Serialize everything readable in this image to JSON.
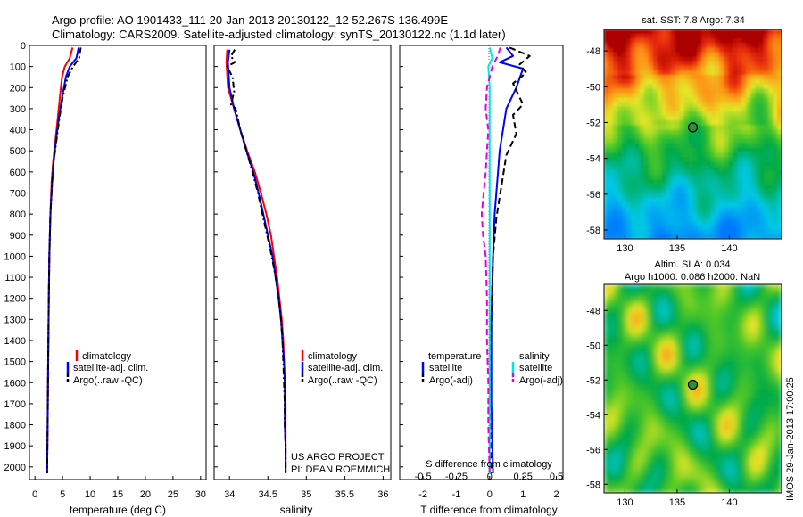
{
  "header": {
    "line1": "Argo profile: AO 1901433_111 20-Jan-2013 20130122_12 52.267S 136.499E",
    "line2": "Climatology: CARS2009. Satellite-adjusted climatology: synTS_20130122.nc (1.1d later)"
  },
  "side_stamp": "IMOS 29-Jan-2013 17:00:25",
  "colors": {
    "climatology": "#ff0000",
    "satellite": "#0000ff",
    "argo": "#000000",
    "s_satellite": "#00e5e5",
    "s_argo": "#e600e6"
  },
  "chart_data": [
    {
      "type": "line",
      "xlabel": "temperature (deg C)",
      "ylabel": "",
      "xlim": [
        -1,
        31
      ],
      "ylim": [
        2060,
        0
      ],
      "xticks": [
        "0",
        "5",
        "10",
        "15",
        "20",
        "25",
        "30"
      ],
      "yticks": [
        "0",
        "100",
        "200",
        "300",
        "400",
        "500",
        "600",
        "700",
        "800",
        "900",
        "1000",
        "1100",
        "1200",
        "1300",
        "1400",
        "1500",
        "1600",
        "1700",
        "1800",
        "1900",
        "2000"
      ],
      "legend": [
        "climatology",
        "satellite-adj. clim.",
        "Argo(..raw -QC)"
      ],
      "legend_position": "bottom-right",
      "series": [
        {
          "name": "climatology",
          "color": "#ff0000",
          "style": "solid",
          "points": [
            [
              6.8,
              10
            ],
            [
              6.3,
              60
            ],
            [
              5.4,
              100
            ],
            [
              4.9,
              150
            ],
            [
              4.5,
              250
            ],
            [
              4.1,
              350
            ],
            [
              3.7,
              450
            ],
            [
              3.3,
              550
            ],
            [
              3.0,
              650
            ],
            [
              2.8,
              800
            ],
            [
              2.6,
              1000
            ],
            [
              2.5,
              1200
            ],
            [
              2.4,
              1500
            ],
            [
              2.3,
              1800
            ],
            [
              2.2,
              2030
            ]
          ]
        },
        {
          "name": "satellite-adj. clim.",
          "color": "#0000ff",
          "style": "solid",
          "points": [
            [
              7.9,
              10
            ],
            [
              7.5,
              60
            ],
            [
              6.3,
              100
            ],
            [
              5.6,
              150
            ],
            [
              4.9,
              250
            ],
            [
              4.3,
              350
            ],
            [
              3.8,
              450
            ],
            [
              3.4,
              550
            ],
            [
              3.1,
              650
            ],
            [
              2.8,
              800
            ],
            [
              2.6,
              1000
            ],
            [
              2.5,
              1200
            ],
            [
              2.4,
              1500
            ],
            [
              2.3,
              1800
            ],
            [
              2.2,
              2030
            ]
          ]
        },
        {
          "name": "Argo(..raw -QC)",
          "color": "#000000",
          "style": "dashdot",
          "points": [
            [
              8.3,
              10
            ],
            [
              8.0,
              60
            ],
            [
              6.9,
              100
            ],
            [
              5.9,
              150
            ],
            [
              5.0,
              250
            ],
            [
              4.4,
              350
            ],
            [
              3.9,
              450
            ],
            [
              3.4,
              550
            ],
            [
              3.1,
              650
            ],
            [
              2.8,
              800
            ],
            [
              2.6,
              1000
            ],
            [
              2.5,
              1200
            ],
            [
              2.4,
              1500
            ],
            [
              2.3,
              1800
            ],
            [
              2.2,
              2030
            ]
          ]
        }
      ]
    },
    {
      "type": "line",
      "xlabel": "salinity",
      "xlim": [
        33.8,
        36.1
      ],
      "ylim": [
        2060,
        0
      ],
      "xticks": [
        "34",
        "34.5",
        "35",
        "35.5",
        "36"
      ],
      "legend": [
        "climatology",
        "satellite-adj. clim.",
        "Argo(..raw -QC)"
      ],
      "legend_position": "bottom-right",
      "annotations": [
        "US ARGO PROJECT",
        "PI: DEAN ROEMMICH"
      ],
      "series": [
        {
          "name": "climatology",
          "color": "#ff0000",
          "style": "solid",
          "points": [
            [
              33.97,
              20
            ],
            [
              33.96,
              80
            ],
            [
              33.98,
              200
            ],
            [
              34.06,
              300
            ],
            [
              34.14,
              400
            ],
            [
              34.23,
              500
            ],
            [
              34.33,
              600
            ],
            [
              34.41,
              700
            ],
            [
              34.48,
              800
            ],
            [
              34.54,
              900
            ],
            [
              34.58,
              1000
            ],
            [
              34.62,
              1100
            ],
            [
              34.65,
              1200
            ],
            [
              34.68,
              1300
            ],
            [
              34.7,
              1400
            ],
            [
              34.71,
              1500
            ],
            [
              34.72,
              1600
            ],
            [
              34.73,
              1700
            ],
            [
              34.73,
              1800
            ],
            [
              34.73,
              1900
            ],
            [
              34.73,
              2030
            ]
          ]
        },
        {
          "name": "satellite-adj. clim.",
          "color": "#0000ff",
          "style": "solid",
          "points": [
            [
              34.0,
              20
            ],
            [
              33.98,
              80
            ],
            [
              34.0,
              200
            ],
            [
              34.06,
              300
            ],
            [
              34.14,
              400
            ],
            [
              34.22,
              500
            ],
            [
              34.31,
              600
            ],
            [
              34.38,
              700
            ],
            [
              34.44,
              800
            ],
            [
              34.5,
              900
            ],
            [
              34.56,
              1000
            ],
            [
              34.6,
              1100
            ],
            [
              34.64,
              1200
            ],
            [
              34.67,
              1300
            ],
            [
              34.69,
              1400
            ],
            [
              34.71,
              1500
            ],
            [
              34.72,
              1600
            ],
            [
              34.72,
              1700
            ],
            [
              34.72,
              1800
            ],
            [
              34.73,
              1900
            ],
            [
              34.73,
              2030
            ]
          ]
        },
        {
          "name": "Argo(..raw -QC)",
          "color": "#000000",
          "style": "dashdot",
          "points": [
            [
              34.07,
              20
            ],
            [
              34.02,
              50
            ],
            [
              34.07,
              80
            ],
            [
              33.97,
              100
            ],
            [
              34.04,
              150
            ],
            [
              34.06,
              220
            ],
            [
              34.02,
              280
            ],
            [
              34.08,
              300
            ],
            [
              34.14,
              400
            ],
            [
              34.22,
              500
            ],
            [
              34.3,
              600
            ],
            [
              34.37,
              700
            ],
            [
              34.43,
              800
            ],
            [
              34.49,
              900
            ],
            [
              34.55,
              1000
            ],
            [
              34.6,
              1100
            ],
            [
              34.64,
              1200
            ],
            [
              34.67,
              1300
            ],
            [
              34.69,
              1400
            ],
            [
              34.7,
              1500
            ],
            [
              34.71,
              1600
            ],
            [
              34.72,
              1700
            ],
            [
              34.72,
              1800
            ],
            [
              34.73,
              1900
            ],
            [
              34.73,
              2030
            ]
          ]
        }
      ]
    },
    {
      "type": "line",
      "xlabel": "T difference from climatology",
      "xlabel2": "S difference from climatology",
      "xlim": [
        -2.7,
        2.2
      ],
      "xticks": [
        "-2",
        "-1",
        "0",
        "1",
        "2"
      ],
      "xticks_top": [
        "-0.5",
        "-0.25",
        "0",
        "0.25",
        "0.5"
      ],
      "ylim": [
        2060,
        0
      ],
      "legend_titles": [
        "temperature",
        "salinity"
      ],
      "legend": [
        "satellite",
        "Argo(-adj)",
        "satellite",
        "Argo(-adj)"
      ],
      "legend_position": "bottom",
      "series": [
        {
          "name": "satellite",
          "quantity": "temperature",
          "color": "#0000ff",
          "style": "solid",
          "points": [
            [
              0.5,
              10
            ],
            [
              0.7,
              50
            ],
            [
              0.3,
              80
            ],
            [
              1.0,
              110
            ],
            [
              0.8,
              200
            ],
            [
              0.5,
              300
            ],
            [
              0.4,
              400
            ],
            [
              0.3,
              500
            ],
            [
              0.25,
              600
            ],
            [
              0.2,
              700
            ],
            [
              0.15,
              800
            ],
            [
              0.1,
              1000
            ],
            [
              0.05,
              1300
            ],
            [
              0.05,
              1700
            ],
            [
              0.1,
              2030
            ]
          ]
        },
        {
          "name": "Argo(-adj)",
          "quantity": "temperature",
          "color": "#000000",
          "style": "dashed",
          "points": [
            [
              0.6,
              10
            ],
            [
              1.2,
              50
            ],
            [
              0.9,
              90
            ],
            [
              1.1,
              130
            ],
            [
              0.7,
              180
            ],
            [
              1.0,
              280
            ],
            [
              0.7,
              330
            ],
            [
              0.8,
              420
            ],
            [
              0.5,
              520
            ],
            [
              0.4,
              620
            ],
            [
              0.3,
              720
            ],
            [
              0.2,
              820
            ],
            [
              0.1,
              1000
            ],
            [
              0.05,
              1300
            ],
            [
              0.0,
              1700
            ],
            [
              0.05,
              2030
            ]
          ]
        },
        {
          "name": "satellite",
          "quantity": "salinity",
          "color": "#00e5e5",
          "style": "solid",
          "points": [
            [
              0.0,
              10
            ],
            [
              0.02,
              60
            ],
            [
              -0.01,
              100
            ],
            [
              0.0,
              200
            ],
            [
              0.0,
              400
            ],
            [
              0.0,
              700
            ],
            [
              0.0,
              1000
            ],
            [
              0.0,
              1500
            ],
            [
              0.0,
              2030
            ]
          ]
        },
        {
          "name": "Argo(-adj)",
          "quantity": "salinity",
          "color": "#e600e6",
          "style": "dashed",
          "points": [
            [
              0.08,
              10
            ],
            [
              0.06,
              50
            ],
            [
              0.02,
              100
            ],
            [
              -0.02,
              200
            ],
            [
              -0.03,
              300
            ],
            [
              -0.02,
              350
            ],
            [
              -0.01,
              400
            ],
            [
              -0.03,
              600
            ],
            [
              -0.06,
              800
            ],
            [
              -0.05,
              900
            ],
            [
              -0.03,
              1000
            ],
            [
              -0.02,
              1200
            ],
            [
              -0.02,
              1400
            ],
            [
              -0.01,
              1600
            ],
            [
              -0.01,
              1800
            ],
            [
              0.0,
              2030
            ]
          ]
        }
      ]
    },
    {
      "type": "heatmap",
      "title": "sat. SST: 7.8 Argo: 7.34",
      "xlim": [
        128,
        145
      ],
      "ylim": [
        -58.5,
        -46.8
      ],
      "xticks": [
        "130",
        "135",
        "140"
      ],
      "yticks": [
        "-48",
        "-50",
        "-52",
        "-54",
        "-56",
        "-58"
      ],
      "marker": [
        136.5,
        -52.27
      ]
    },
    {
      "type": "heatmap",
      "title": "Altim. SLA: 0.034",
      "subtitle": "Argo h1000: 0.086 h2000: NaN",
      "xlim": [
        128,
        145
      ],
      "ylim": [
        -58.5,
        -46.5
      ],
      "xticks": [
        "130",
        "135",
        "140"
      ],
      "yticks": [
        "-48",
        "-50",
        "-52",
        "-54",
        "-56",
        "-58"
      ],
      "marker": [
        136.5,
        -52.27
      ]
    }
  ]
}
